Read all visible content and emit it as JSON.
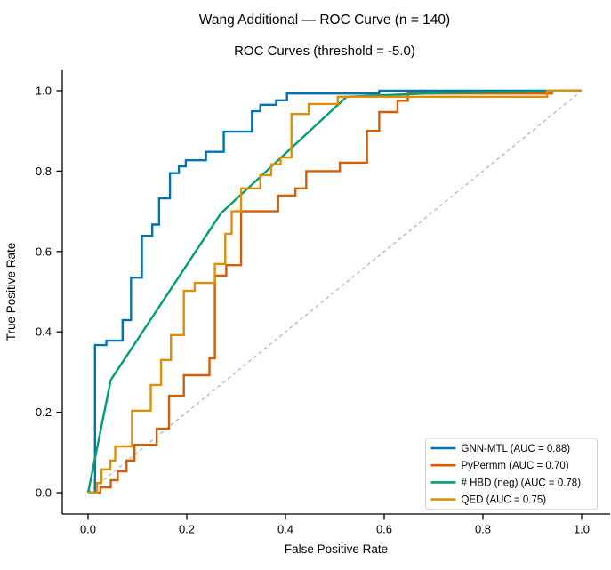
{
  "figure": {
    "title": "Wang Additional — ROC Curve  (n = 140)",
    "subtitle": "ROC Curves  (threshold = -5.0)"
  },
  "chart_data": {
    "type": "line",
    "title": "Wang Additional — ROC Curve  (n = 140)",
    "subtitle": "ROC Curves  (threshold = -5.0)",
    "xlabel": "False Positive Rate",
    "ylabel": "True Positive Rate",
    "xlim": [
      -0.05,
      1.05
    ],
    "ylim": [
      -0.05,
      1.05
    ],
    "grid": false,
    "legend_position": "lower right",
    "xticks": {
      "values": [
        0,
        0.2,
        0.4,
        0.6,
        0.8,
        1.0
      ],
      "labels": [
        "0.0",
        "0.2",
        "0.4",
        "0.6",
        "0.8",
        "1.0"
      ]
    },
    "yticks": {
      "values": [
        0,
        0.2,
        0.4,
        0.6,
        0.8,
        1.0
      ],
      "labels": [
        "0.0",
        "0.2",
        "0.4",
        "0.6",
        "0.8",
        "1.0"
      ]
    },
    "reference_line": {
      "name": "chance-diagonal",
      "from": [
        0,
        0
      ],
      "to": [
        1,
        1
      ],
      "color": "#aaaaaa",
      "style": "dashed"
    },
    "series": [
      {
        "name": "GNN-MTL",
        "auc": "0.88",
        "label": "GNN-MTL (AUC = 0.88)",
        "color": "#0173b2",
        "points": [
          [
            0,
            0
          ],
          [
            0.014,
            0
          ],
          [
            0.014,
            0.367
          ],
          [
            0.037,
            0.367
          ],
          [
            0.037,
            0.378
          ],
          [
            0.07,
            0.378
          ],
          [
            0.07,
            0.429
          ],
          [
            0.087,
            0.429
          ],
          [
            0.087,
            0.535
          ],
          [
            0.109,
            0.535
          ],
          [
            0.109,
            0.639
          ],
          [
            0.13,
            0.639
          ],
          [
            0.13,
            0.667
          ],
          [
            0.144,
            0.667
          ],
          [
            0.144,
            0.732
          ],
          [
            0.166,
            0.732
          ],
          [
            0.166,
            0.795
          ],
          [
            0.184,
            0.795
          ],
          [
            0.184,
            0.812
          ],
          [
            0.198,
            0.812
          ],
          [
            0.198,
            0.827
          ],
          [
            0.239,
            0.827
          ],
          [
            0.239,
            0.848
          ],
          [
            0.275,
            0.848
          ],
          [
            0.275,
            0.898
          ],
          [
            0.332,
            0.898
          ],
          [
            0.332,
            0.949
          ],
          [
            0.349,
            0.949
          ],
          [
            0.349,
            0.965
          ],
          [
            0.381,
            0.965
          ],
          [
            0.381,
            0.976
          ],
          [
            0.403,
            0.976
          ],
          [
            0.403,
            0.993
          ],
          [
            0.59,
            0.993
          ],
          [
            0.59,
            1
          ],
          [
            1,
            1
          ]
        ]
      },
      {
        "name": "PyPermm",
        "auc": "0.70",
        "label": "PyPermm (AUC = 0.70)",
        "color": "#d55e00",
        "points": [
          [
            0,
            0
          ],
          [
            0.025,
            0
          ],
          [
            0.025,
            0.013
          ],
          [
            0.046,
            0.013
          ],
          [
            0.046,
            0.031
          ],
          [
            0.06,
            0.031
          ],
          [
            0.06,
            0.053
          ],
          [
            0.078,
            0.053
          ],
          [
            0.078,
            0.08
          ],
          [
            0.094,
            0.08
          ],
          [
            0.094,
            0.119
          ],
          [
            0.139,
            0.119
          ],
          [
            0.139,
            0.159
          ],
          [
            0.164,
            0.159
          ],
          [
            0.164,
            0.241
          ],
          [
            0.194,
            0.241
          ],
          [
            0.194,
            0.292
          ],
          [
            0.246,
            0.292
          ],
          [
            0.246,
            0.334
          ],
          [
            0.257,
            0.334
          ],
          [
            0.257,
            0.54
          ],
          [
            0.28,
            0.54
          ],
          [
            0.28,
            0.566
          ],
          [
            0.31,
            0.566
          ],
          [
            0.31,
            0.7
          ],
          [
            0.385,
            0.7
          ],
          [
            0.385,
            0.739
          ],
          [
            0.42,
            0.739
          ],
          [
            0.42,
            0.757
          ],
          [
            0.442,
            0.757
          ],
          [
            0.442,
            0.8
          ],
          [
            0.51,
            0.8
          ],
          [
            0.51,
            0.821
          ],
          [
            0.565,
            0.821
          ],
          [
            0.565,
            0.9
          ],
          [
            0.59,
            0.9
          ],
          [
            0.59,
            0.947
          ],
          [
            0.627,
            0.947
          ],
          [
            0.627,
            0.975
          ],
          [
            0.648,
            0.975
          ],
          [
            0.648,
            0.993
          ],
          [
            0.94,
            0.993
          ],
          [
            0.94,
            1
          ],
          [
            1,
            1
          ]
        ]
      },
      {
        "name": "# HBD (neg)",
        "auc": "0.78",
        "label": "# HBD (neg) (AUC = 0.78)",
        "color": "#029e73",
        "points": [
          [
            0,
            0
          ],
          [
            0.046,
            0.28
          ],
          [
            0.269,
            0.695
          ],
          [
            0.524,
            0.985
          ],
          [
            0.72,
            0.995
          ],
          [
            1,
            1
          ]
        ]
      },
      {
        "name": "QED",
        "auc": "0.75",
        "label": "QED (AUC = 0.75)",
        "color": "#de8f05",
        "points": [
          [
            0,
            0
          ],
          [
            0.018,
            0
          ],
          [
            0.018,
            0.024
          ],
          [
            0.027,
            0.024
          ],
          [
            0.027,
            0.058
          ],
          [
            0.045,
            0.058
          ],
          [
            0.045,
            0.08
          ],
          [
            0.055,
            0.08
          ],
          [
            0.055,
            0.115
          ],
          [
            0.089,
            0.115
          ],
          [
            0.089,
            0.204
          ],
          [
            0.127,
            0.204
          ],
          [
            0.127,
            0.268
          ],
          [
            0.148,
            0.268
          ],
          [
            0.148,
            0.33
          ],
          [
            0.168,
            0.33
          ],
          [
            0.168,
            0.392
          ],
          [
            0.194,
            0.392
          ],
          [
            0.194,
            0.502
          ],
          [
            0.216,
            0.502
          ],
          [
            0.216,
            0.522
          ],
          [
            0.257,
            0.522
          ],
          [
            0.257,
            0.569
          ],
          [
            0.278,
            0.569
          ],
          [
            0.278,
            0.644
          ],
          [
            0.291,
            0.644
          ],
          [
            0.291,
            0.7
          ],
          [
            0.31,
            0.7
          ],
          [
            0.31,
            0.757
          ],
          [
            0.349,
            0.757
          ],
          [
            0.349,
            0.79
          ],
          [
            0.371,
            0.79
          ],
          [
            0.371,
            0.817
          ],
          [
            0.39,
            0.817
          ],
          [
            0.39,
            0.834
          ],
          [
            0.412,
            0.834
          ],
          [
            0.412,
            0.942
          ],
          [
            0.447,
            0.942
          ],
          [
            0.447,
            0.967
          ],
          [
            0.506,
            0.967
          ],
          [
            0.506,
            0.985
          ],
          [
            0.93,
            0.985
          ],
          [
            0.93,
            1
          ],
          [
            1,
            1
          ]
        ]
      }
    ]
  }
}
